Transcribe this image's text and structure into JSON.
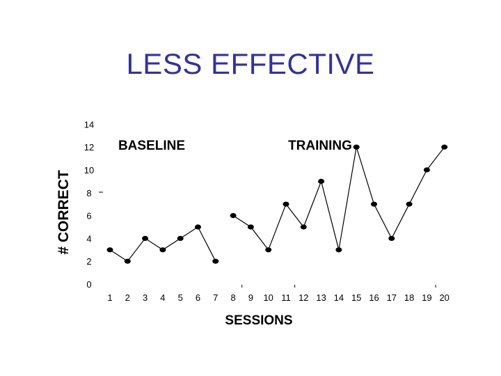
{
  "slide": {
    "title": "LESS EFFECTIVE"
  },
  "chart_data": {
    "type": "line",
    "title": "LESS EFFECTIVE",
    "xlabel": "SESSIONS",
    "ylabel": "# CORRECT",
    "ylim": [
      0,
      14
    ],
    "y_ticks": [
      0,
      2,
      4,
      6,
      8,
      10,
      12,
      14
    ],
    "x_ticks": [
      1,
      2,
      3,
      4,
      5,
      6,
      7,
      8,
      9,
      10,
      11,
      12,
      13,
      14,
      15,
      16,
      17,
      18,
      19,
      20
    ],
    "grid": false,
    "phases": [
      {
        "label": "BASELINE",
        "x": [
          1,
          2,
          3,
          4,
          5,
          6,
          7
        ],
        "y": [
          3,
          2,
          4,
          3,
          4,
          5,
          2
        ]
      },
      {
        "label": "TRAINING",
        "x": [
          8,
          9,
          10,
          11,
          12,
          13,
          14,
          15,
          16,
          17,
          18,
          19,
          20
        ],
        "y": [
          6,
          5,
          3,
          7,
          5,
          9,
          3,
          12,
          7,
          4,
          7,
          10,
          12
        ]
      }
    ],
    "series_color": "#000000"
  }
}
